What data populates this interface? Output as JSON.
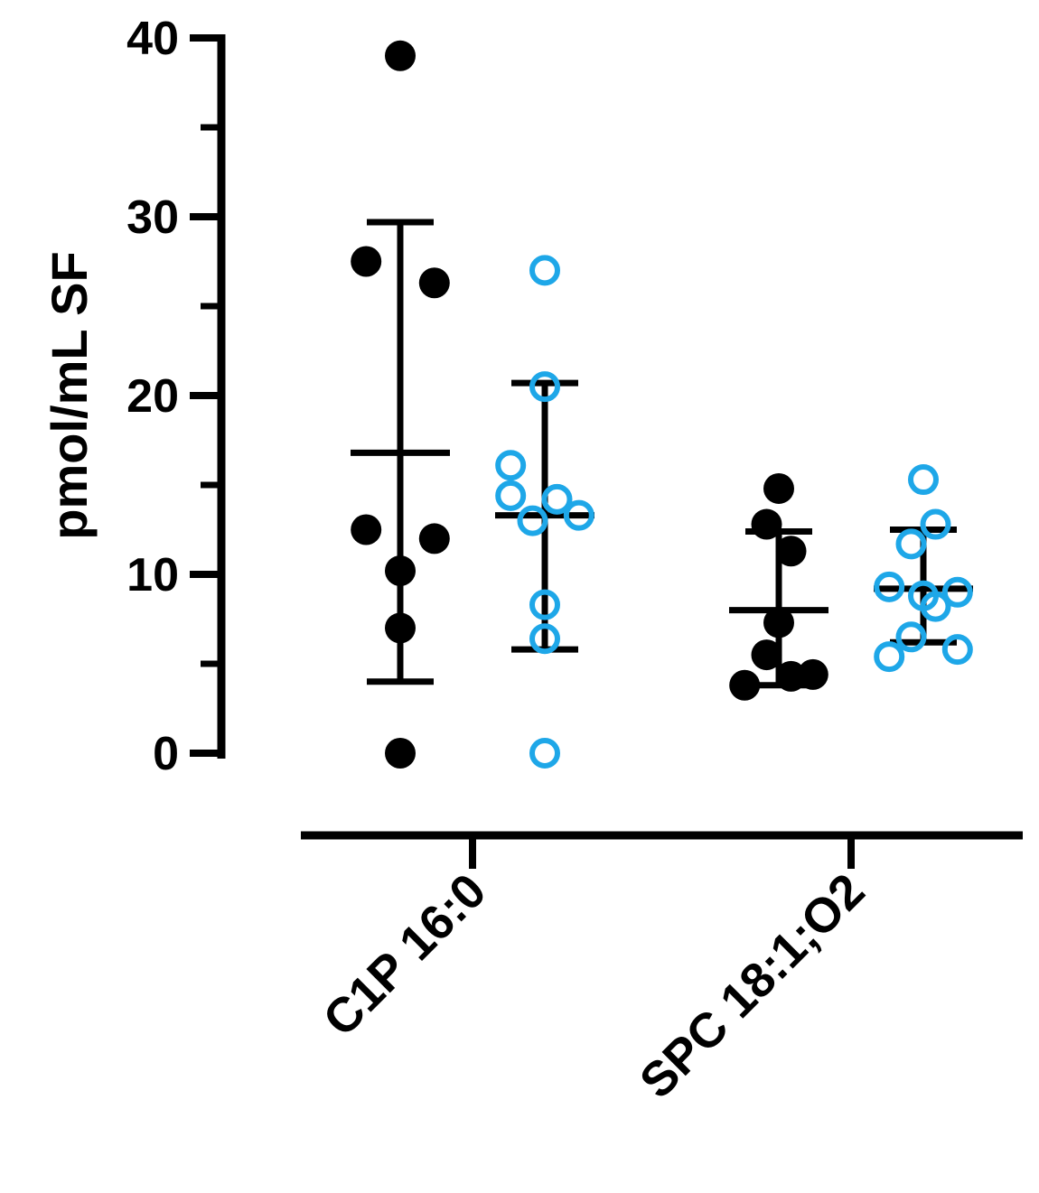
{
  "chart_data": {
    "type": "scatter",
    "ylabel": "pmol/mL SF",
    "xlabel": "",
    "ylim": [
      0,
      40
    ],
    "y_major_ticks": [
      0,
      10,
      20,
      30,
      40
    ],
    "y_minor_ticks": [
      5,
      15,
      25,
      35
    ],
    "y_tick_labels": [
      "0",
      "10",
      "20",
      "30",
      "40"
    ],
    "categories": [
      "C1P 16:0",
      "SPC 18:1;O2"
    ],
    "grid": false,
    "legend": "none",
    "colors": {
      "group_a": "#000000",
      "group_b": "#1ea7e8"
    },
    "series": [
      {
        "marker": "filled-circle",
        "color": "#000000",
        "points": [
          [
            {
              "y": 39.0,
              "j": 0
            },
            {
              "y": 27.5,
              "j": -0.14
            },
            {
              "y": 26.3,
              "j": 0.14
            },
            {
              "y": 12.5,
              "j": -0.14
            },
            {
              "y": 12.0,
              "j": 0.14
            },
            {
              "y": 10.2,
              "j": 0
            },
            {
              "y": 7.0,
              "j": 0
            },
            {
              "y": 0.0,
              "j": 0
            }
          ],
          [
            {
              "y": 14.8,
              "j": 0
            },
            {
              "y": 12.8,
              "j": -0.05
            },
            {
              "y": 11.3,
              "j": 0.05
            },
            {
              "y": 7.3,
              "j": 0
            },
            {
              "y": 5.5,
              "j": -0.05
            },
            {
              "y": 4.4,
              "j": 0.14
            },
            {
              "y": 4.3,
              "j": 0.05
            },
            {
              "y": 3.8,
              "j": -0.14
            }
          ]
        ],
        "mean": [
          16.8,
          8.0
        ],
        "sd_upper": [
          29.7,
          12.4
        ],
        "sd_lower": [
          4.0,
          3.8
        ]
      },
      {
        "marker": "open-circle",
        "color": "#1ea7e8",
        "points": [
          [
            {
              "y": 27.0,
              "j": 0
            },
            {
              "y": 20.5,
              "j": 0
            },
            {
              "y": 16.1,
              "j": -0.14
            },
            {
              "y": 14.4,
              "j": -0.14
            },
            {
              "y": 14.2,
              "j": 0.05
            },
            {
              "y": 13.3,
              "j": 0.14
            },
            {
              "y": 13.0,
              "j": -0.05
            },
            {
              "y": 8.3,
              "j": 0
            },
            {
              "y": 6.4,
              "j": 0
            },
            {
              "y": 0.0,
              "j": 0
            }
          ],
          [
            {
              "y": 15.3,
              "j": 0
            },
            {
              "y": 12.8,
              "j": 0.05
            },
            {
              "y": 11.7,
              "j": -0.05
            },
            {
              "y": 9.3,
              "j": -0.14
            },
            {
              "y": 9.0,
              "j": 0.14
            },
            {
              "y": 8.8,
              "j": 0
            },
            {
              "y": 8.2,
              "j": 0.05
            },
            {
              "y": 6.5,
              "j": -0.05
            },
            {
              "y": 5.8,
              "j": 0.14
            },
            {
              "y": 5.4,
              "j": -0.14
            }
          ]
        ],
        "mean": [
          13.3,
          9.2
        ],
        "sd_upper": [
          20.7,
          12.5
        ],
        "sd_lower": [
          5.8,
          6.2
        ]
      }
    ]
  }
}
